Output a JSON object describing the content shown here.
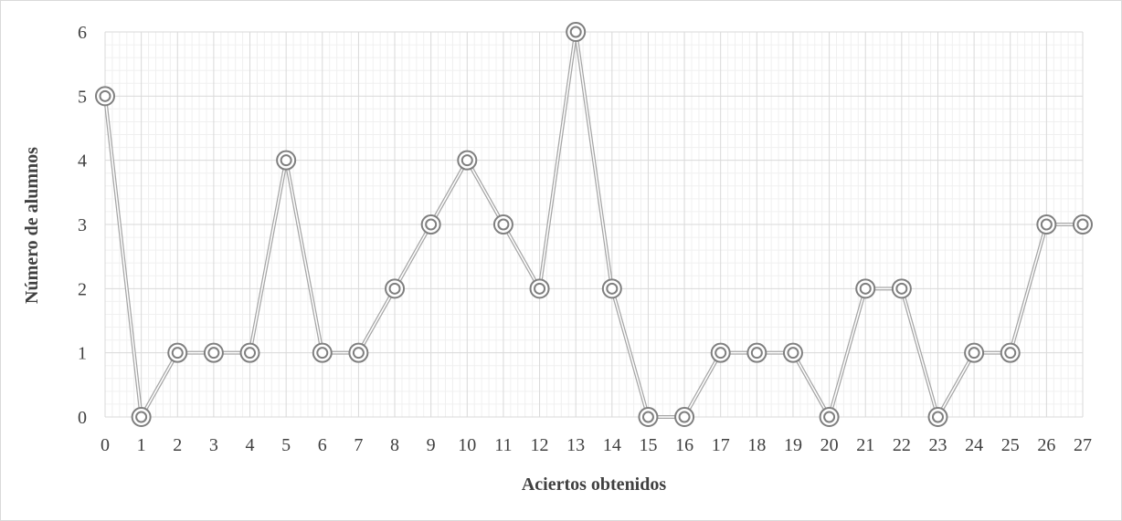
{
  "chart_data": {
    "type": "line",
    "title": "",
    "xlabel": "Aciertos obtenidos",
    "ylabel": "Número de alumnos",
    "x": [
      0,
      1,
      2,
      3,
      4,
      5,
      6,
      7,
      8,
      9,
      10,
      11,
      12,
      13,
      14,
      15,
      16,
      17,
      18,
      19,
      20,
      21,
      22,
      23,
      24,
      25,
      26,
      27
    ],
    "series": [
      {
        "values": [
          5,
          0,
          1,
          1,
          1,
          4,
          1,
          1,
          2,
          3,
          4,
          3,
          2,
          6,
          2,
          0,
          0,
          1,
          1,
          1,
          0,
          2,
          2,
          0,
          1,
          1,
          3,
          3
        ]
      }
    ],
    "xlim": [
      0,
      27
    ],
    "ylim": [
      0,
      6
    ],
    "yticks": [
      0,
      1,
      2,
      3,
      4,
      5,
      6
    ],
    "grid": true,
    "legend": "none",
    "colors": {
      "line": "#a6a6a6",
      "marker": "#7f7f7f",
      "major_grid": "#d9d9d9",
      "minor_grid": "#f0f0f0"
    }
  }
}
